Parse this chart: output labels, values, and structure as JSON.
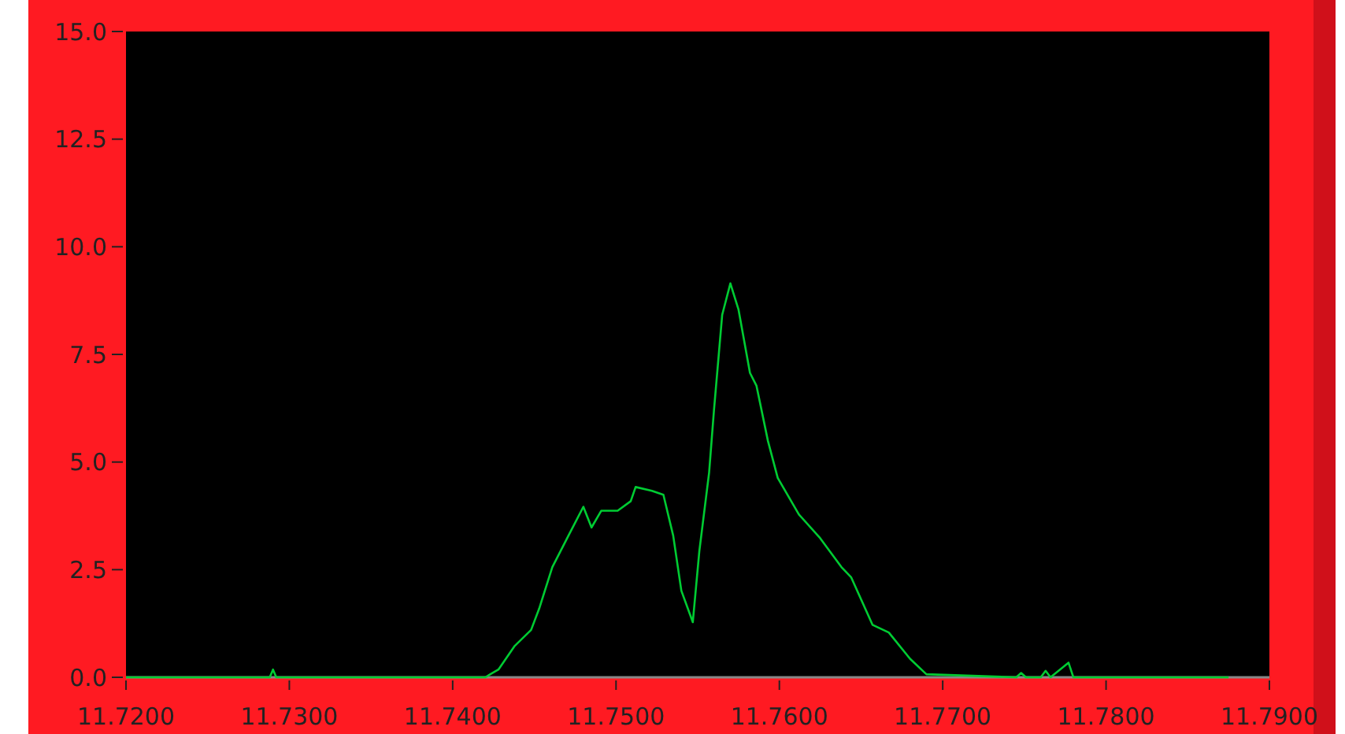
{
  "chart_data": {
    "type": "line",
    "xlim": [
      11.72,
      11.79
    ],
    "ylim": [
      0,
      15
    ],
    "xticks": [
      {
        "value": 11.72,
        "label": "11.7200"
      },
      {
        "value": 11.73,
        "label": "11.7300"
      },
      {
        "value": 11.74,
        "label": "11.7400"
      },
      {
        "value": 11.75,
        "label": "11.7500"
      },
      {
        "value": 11.76,
        "label": "11.7600"
      },
      {
        "value": 11.77,
        "label": "11.7700"
      },
      {
        "value": 11.78,
        "label": "11.7800"
      },
      {
        "value": 11.79,
        "label": "11.7900"
      }
    ],
    "yticks": [
      {
        "value": 0,
        "label": "0.0"
      },
      {
        "value": 2.5,
        "label": "2.5"
      },
      {
        "value": 5,
        "label": "5.0"
      },
      {
        "value": 7.5,
        "label": "7.5"
      },
      {
        "value": 10,
        "label": "10.0"
      },
      {
        "value": 12.5,
        "label": "12.5"
      },
      {
        "value": 15,
        "label": "15.0"
      }
    ],
    "grid": false,
    "series": [
      {
        "color": "#00cc33",
        "x": [
          11.72,
          11.7288,
          11.729,
          11.7292,
          11.742,
          11.7423,
          11.7428,
          11.7438,
          11.7448,
          11.7453,
          11.7461,
          11.7471,
          11.748,
          11.7485,
          11.7491,
          11.7501,
          11.7509,
          11.7512,
          11.7522,
          11.7529,
          11.7535,
          11.754,
          11.7547,
          11.7551,
          11.7557,
          11.756,
          11.7565,
          11.757,
          11.7575,
          11.7582,
          11.7586,
          11.7593,
          11.7599,
          11.7612,
          11.7625,
          11.7638,
          11.7644,
          11.7657,
          11.7667,
          11.768,
          11.769,
          11.7745,
          11.7748,
          11.7751,
          11.776,
          11.7763,
          11.7766,
          11.7777,
          11.778,
          11.7875
        ],
        "values": [
          0,
          0,
          0.18,
          0,
          0,
          0.07,
          0.18,
          0.73,
          1.1,
          1.6,
          2.56,
          3.3,
          3.96,
          3.48,
          3.87,
          3.87,
          4.09,
          4.42,
          4.33,
          4.24,
          3.29,
          2.01,
          1.28,
          2.93,
          4.76,
          6.22,
          8.42,
          9.15,
          8.54,
          7.07,
          6.77,
          5.49,
          4.63,
          3.78,
          3.23,
          2.56,
          2.32,
          1.22,
          1.04,
          0.43,
          0.07,
          0,
          0.1,
          0,
          0,
          0.15,
          0,
          0.34,
          0,
          0
        ]
      }
    ]
  }
}
